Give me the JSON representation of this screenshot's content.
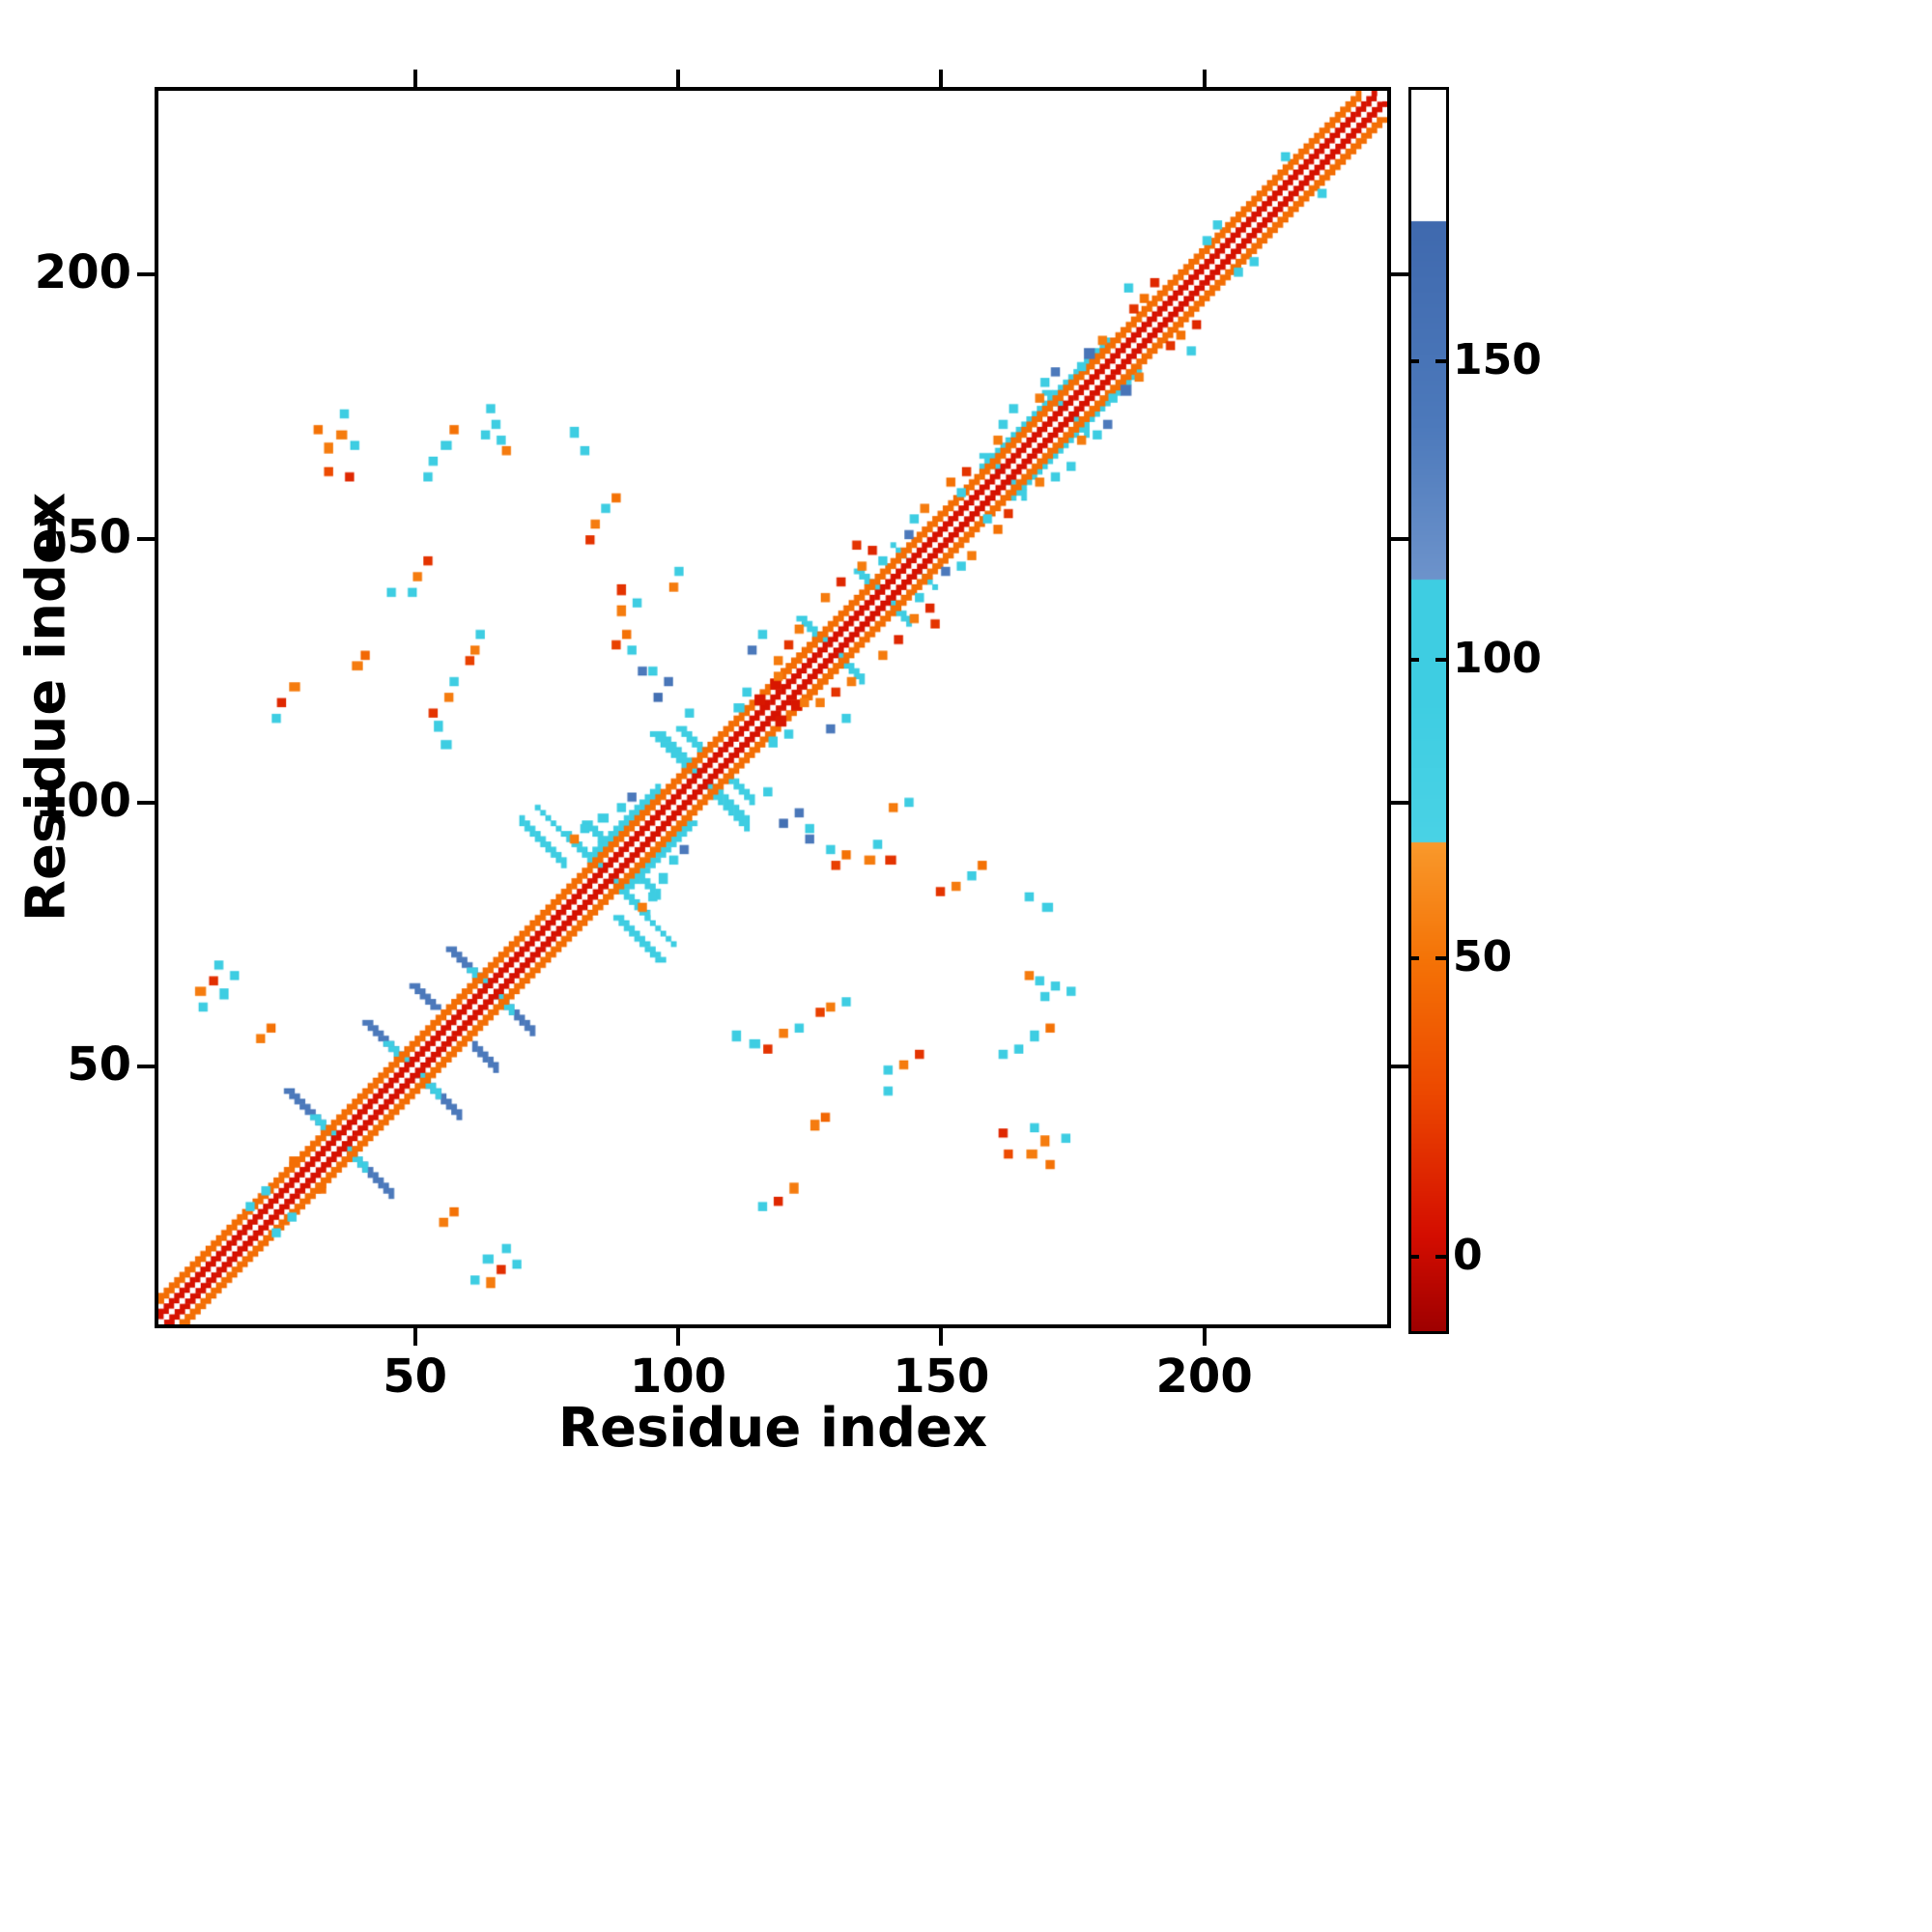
{
  "chart_data": {
    "type": "heatmap",
    "title": "",
    "xlabel": "Residue index",
    "ylabel": "Residue index",
    "xlim": [
      0.5,
      235.5
    ],
    "ylim": [
      0.5,
      235.5
    ],
    "xticks": [
      50,
      100,
      150,
      200
    ],
    "yticks": [
      50,
      100,
      150,
      200
    ],
    "n_residues": 235,
    "symmetric": true,
    "grid": false,
    "colorbar": {
      "vmin": -12,
      "vmax": 196,
      "ticks": [
        0,
        50,
        100,
        150
      ],
      "tick_labels": [
        "0",
        "50",
        "100",
        "150"
      ],
      "stops": [
        [
          -12,
          "#9e0000"
        ],
        [
          4,
          "#d40d00"
        ],
        [
          28,
          "#ec4800"
        ],
        [
          50,
          "#f47206"
        ],
        [
          70,
          "#f9992b"
        ],
        [
          70,
          "#49d2e5"
        ],
        [
          95,
          "#3ecde2"
        ],
        [
          114,
          "#3ecde2"
        ],
        [
          114,
          "#6d93cb"
        ],
        [
          140,
          "#4c79bb"
        ],
        [
          174,
          "#3f69ae"
        ],
        [
          174,
          "#ffffff"
        ],
        [
          196,
          "#ffffff"
        ]
      ]
    },
    "features": {
      "diagonal_bands": [
        {
          "offset": 1,
          "thick": 2,
          "value": 6
        },
        {
          "offset": 4,
          "thick": 2,
          "value": 48
        }
      ],
      "cross_streaks": [
        [
          35,
          3,
          10,
          140,
          2
        ],
        [
          35,
          1,
          5,
          95,
          2
        ],
        [
          49,
          3,
          9,
          140,
          2
        ],
        [
          49,
          1,
          5,
          95,
          2
        ],
        [
          57,
          4,
          8,
          140,
          2
        ],
        [
          64,
          3,
          8,
          140,
          2
        ],
        [
          64,
          1,
          4,
          95,
          2
        ],
        [
          86,
          2,
          8,
          97,
          2
        ],
        [
          89,
          3,
          7,
          95,
          2
        ],
        [
          104,
          1,
          9,
          95,
          3
        ],
        [
          107,
          3,
          7,
          92,
          2
        ],
        [
          129,
          2,
          6,
          95,
          2
        ],
        [
          139,
          2,
          5,
          95,
          2
        ],
        [
          145,
          1,
          4,
          95,
          1
        ],
        [
          162,
          1,
          4,
          95,
          2
        ],
        [
          174,
          1,
          4,
          95,
          2
        ]
      ],
      "offdiag_streaks": [
        [
          70,
          96,
          9,
          95,
          2
        ],
        [
          73,
          99,
          7,
          95,
          1
        ]
      ],
      "parallel_bands": [
        [
          158,
          182,
          5,
          95,
          2
        ],
        [
          84,
          96,
          6,
          95,
          2
        ],
        [
          118,
          127,
          4,
          48,
          2
        ]
      ],
      "spots": [
        [
          8,
          64,
          55,
          2,
          1
        ],
        [
          11,
          66,
          18,
          1,
          1
        ],
        [
          13,
          63,
          95,
          1,
          2
        ],
        [
          9,
          61,
          95,
          1,
          1
        ],
        [
          12,
          69,
          95,
          1,
          1
        ],
        [
          15,
          67,
          95,
          1,
          1
        ],
        [
          18,
          23,
          95,
          1,
          1
        ],
        [
          21,
          26,
          95,
          1,
          1
        ],
        [
          26,
          31,
          48,
          2,
          2
        ],
        [
          20,
          55,
          55,
          1,
          1
        ],
        [
          22,
          57,
          50,
          1,
          1
        ],
        [
          23,
          116,
          95,
          1,
          1
        ],
        [
          24,
          119,
          15,
          1,
          1
        ],
        [
          26,
          122,
          55,
          2,
          1
        ],
        [
          31,
          171,
          50,
          1,
          1
        ],
        [
          33,
          163,
          30,
          1,
          1
        ],
        [
          33,
          167,
          55,
          1,
          2
        ],
        [
          35,
          170,
          55,
          2,
          1
        ],
        [
          36,
          174,
          95,
          1,
          1
        ],
        [
          38,
          168,
          95,
          1,
          1
        ],
        [
          37,
          162,
          15,
          1,
          1
        ],
        [
          38,
          126,
          55,
          2,
          1
        ],
        [
          40,
          128,
          45,
          1,
          1
        ],
        [
          45,
          140,
          95,
          1,
          1
        ],
        [
          49,
          140,
          95,
          1,
          1
        ],
        [
          50,
          143,
          55,
          1,
          1
        ],
        [
          52,
          146,
          20,
          1,
          1
        ],
        [
          52,
          162,
          95,
          1,
          1
        ],
        [
          53,
          165,
          95,
          1,
          1
        ],
        [
          55,
          168,
          95,
          2,
          1
        ],
        [
          57,
          171,
          50,
          1,
          1
        ],
        [
          53,
          117,
          20,
          1,
          1
        ],
        [
          54,
          114,
          95,
          1,
          2
        ],
        [
          55,
          111,
          95,
          2,
          1
        ],
        [
          56,
          120,
          55,
          1,
          1
        ],
        [
          57,
          123,
          95,
          1,
          1
        ],
        [
          60,
          127,
          25,
          1,
          1
        ],
        [
          61,
          129,
          55,
          1,
          1
        ],
        [
          62,
          132,
          95,
          1,
          1
        ],
        [
          63,
          170,
          95,
          1,
          1
        ],
        [
          64,
          175,
          95,
          1,
          1
        ],
        [
          65,
          172,
          95,
          1,
          1
        ],
        [
          66,
          169,
          95,
          1,
          1
        ],
        [
          67,
          167,
          55,
          1,
          1
        ],
        [
          80,
          93,
          55,
          1,
          1
        ],
        [
          82,
          95,
          95,
          1,
          1
        ],
        [
          85,
          97,
          95,
          2,
          1
        ],
        [
          89,
          99,
          95,
          1,
          1
        ],
        [
          91,
          101,
          140,
          1,
          1
        ],
        [
          80,
          170,
          95,
          1,
          2
        ],
        [
          82,
          167,
          95,
          1,
          1
        ],
        [
          83,
          150,
          20,
          1,
          1
        ],
        [
          84,
          153,
          55,
          1,
          1
        ],
        [
          86,
          156,
          95,
          1,
          1
        ],
        [
          88,
          158,
          50,
          1,
          1
        ],
        [
          88,
          130,
          25,
          1,
          1
        ],
        [
          89,
          136,
          55,
          1,
          2
        ],
        [
          89,
          140,
          20,
          1,
          2
        ],
        [
          90,
          132,
          50,
          1,
          1
        ],
        [
          91,
          129,
          95,
          1,
          1
        ],
        [
          92,
          138,
          95,
          1,
          1
        ],
        [
          93,
          125,
          140,
          1,
          1
        ],
        [
          95,
          125,
          95,
          1,
          1
        ],
        [
          96,
          120,
          160,
          1,
          1
        ],
        [
          98,
          123,
          145,
          1,
          1
        ],
        [
          99,
          141,
          55,
          1,
          1
        ],
        [
          100,
          144,
          95,
          1,
          1
        ],
        [
          102,
          117,
          95,
          1,
          1
        ],
        [
          111,
          118,
          95,
          2,
          1
        ],
        [
          113,
          121,
          95,
          1,
          1
        ],
        [
          114,
          129,
          140,
          1,
          1
        ],
        [
          116,
          132,
          95,
          1,
          1
        ],
        [
          115,
          119,
          8,
          2,
          2
        ],
        [
          118,
          122,
          8,
          2,
          2
        ],
        [
          119,
          124,
          55,
          1,
          1
        ],
        [
          119,
          127,
          55,
          1,
          1
        ],
        [
          121,
          130,
          20,
          1,
          1
        ],
        [
          123,
          133,
          55,
          1,
          1
        ],
        [
          128,
          139,
          55,
          1,
          1
        ],
        [
          131,
          142,
          15,
          1,
          1
        ],
        [
          134,
          149,
          20,
          1,
          1
        ],
        [
          135,
          145,
          55,
          1,
          1
        ],
        [
          137,
          148,
          15,
          1,
          1
        ],
        [
          139,
          146,
          95,
          1,
          1
        ],
        [
          144,
          151,
          140,
          1,
          1
        ],
        [
          145,
          154,
          95,
          1,
          1
        ],
        [
          147,
          156,
          55,
          1,
          1
        ],
        [
          152,
          161,
          50,
          1,
          1
        ],
        [
          154,
          159,
          95,
          1,
          1
        ],
        [
          155,
          163,
          20,
          1,
          1
        ],
        [
          161,
          169,
          55,
          1,
          1
        ],
        [
          162,
          172,
          95,
          1,
          1
        ],
        [
          164,
          175,
          95,
          1,
          1
        ],
        [
          169,
          177,
          55,
          1,
          1
        ],
        [
          170,
          180,
          95,
          1,
          1
        ],
        [
          172,
          182,
          140,
          1,
          1
        ],
        [
          177,
          183,
          95,
          1,
          1
        ],
        [
          178,
          185,
          150,
          2,
          2
        ],
        [
          181,
          188,
          55,
          1,
          1
        ],
        [
          186,
          198,
          95,
          1,
          1
        ],
        [
          187,
          194,
          20,
          1,
          1
        ],
        [
          189,
          196,
          50,
          1,
          1
        ],
        [
          191,
          199,
          15,
          1,
          1
        ],
        [
          201,
          207,
          95,
          1,
          1
        ],
        [
          203,
          210,
          95,
          1,
          1
        ],
        [
          216,
          223,
          95,
          1,
          1
        ]
      ]
    }
  }
}
